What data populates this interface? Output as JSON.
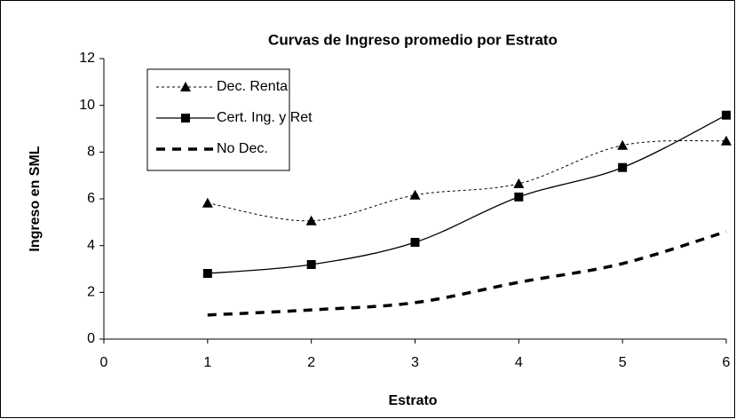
{
  "chart_data": {
    "type": "line",
    "title": "Curvas de Ingreso promedio por Estrato",
    "x_label": "Estrato",
    "y_label": "Ingreso en SML",
    "x": [
      1,
      2,
      3,
      4,
      5,
      6
    ],
    "series": [
      {
        "name": "Dec. Renta",
        "color": "#000000",
        "line_style": "dotted",
        "marker": "triangle",
        "values": [
          5.82,
          5.06,
          6.16,
          6.65,
          8.29,
          8.48
        ]
      },
      {
        "name": "Cert. Ing. y Ret",
        "color": "#000000",
        "line_style": "solid",
        "marker": "square",
        "values": [
          2.81,
          3.19,
          4.14,
          6.08,
          7.34,
          9.58
        ]
      },
      {
        "name": "No Dec.",
        "color": "#000000",
        "line_style": "dashed",
        "marker": "none",
        "values": [
          1.03,
          1.25,
          1.56,
          2.43,
          3.23,
          4.6
        ]
      }
    ],
    "xlim": [
      0,
      6
    ],
    "xticks": [
      0,
      1,
      2,
      3,
      4,
      5,
      6
    ],
    "ylim": [
      0,
      12
    ],
    "yticks": [
      0,
      2,
      4,
      6,
      8,
      10,
      12
    ],
    "grid": false,
    "legend": "upper left"
  }
}
